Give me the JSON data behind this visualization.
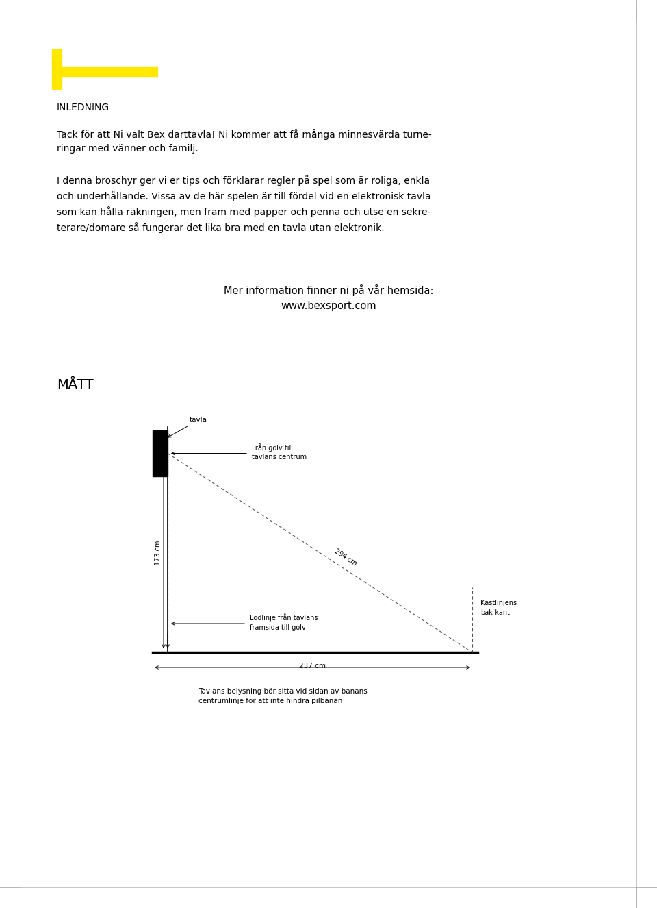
{
  "bg_color": "#ffffff",
  "yellow_color": "#FFE800",
  "black_color": "#000000",
  "title_inledning": "INLEDNING",
  "para1": "Tack för att Ni valt Bex darttavla! Ni kommer att få många minnesvärda turne-\nringar med vänner och familj.",
  "para2": "I denna broschyr ger vi er tips och förklarar regler på spel som är roliga, enkla\noch underhållande. Vissa av de här spelen är till fördel vid en elektronisk tavla\nsom kan hålla räkningen, men fram med papper och penna och utse en sekre-\nterare/domare så fungerar det lika bra med en tavla utan elektronik.",
  "center_text": "Mer information finner ni på vår hemsida:\nwww.bexsport.com",
  "matt_title": "MÅTT",
  "caption": "Tavlans belysning bör sitta vid sidan av banans\ncentrumlinje för att inte hindra pilbanan",
  "label_tavla": "tavla",
  "label_fran_golv": "Från golv till\ntavlans centrum",
  "label_173": "173 cm",
  "label_294": "294 cm",
  "label_kastlinjen": "Kastlinjens\nbak-kant",
  "label_lodlinje": "Lodlinje från tavlans\nframsida till golv",
  "label_237": "237 cm"
}
